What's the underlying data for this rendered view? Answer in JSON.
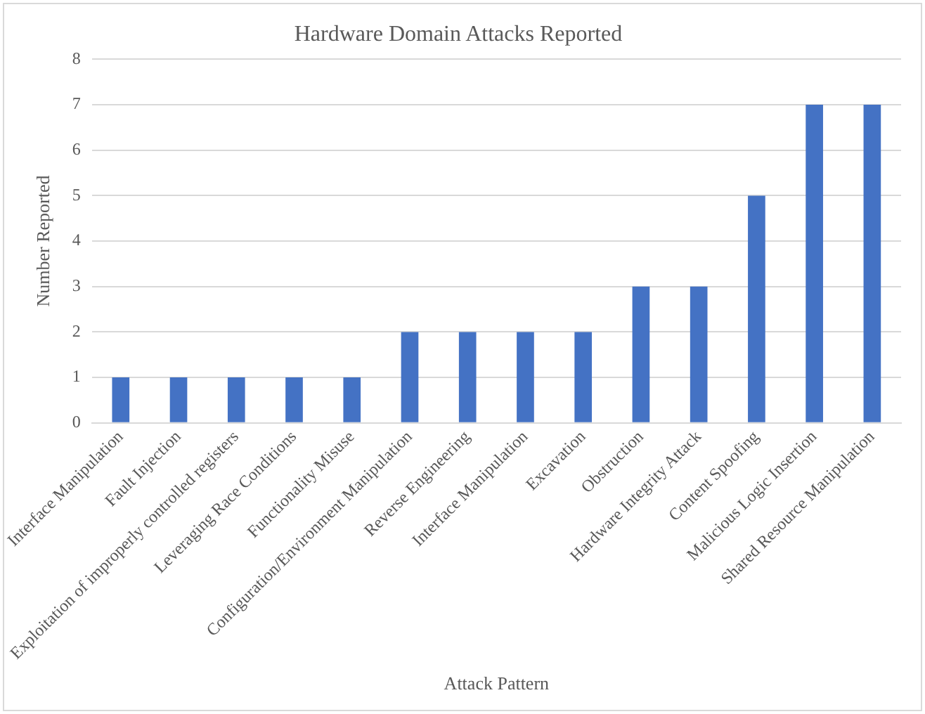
{
  "chart_data": {
    "type": "bar",
    "title": "Hardware Domain Attacks Reported",
    "xlabel": "Attack Pattern",
    "ylabel": "Number Reported",
    "categories": [
      "Interface Manipulation",
      "Fault Injection",
      "Exploitation of improperly controlled registers",
      "Leveraging Race Conditions",
      "Functionality Misuse",
      "Configuration/Environment Manipulation",
      "Reverse Engineering",
      "Interface Manipulation",
      "Excavation",
      "Obstruction",
      "Hardware Integrity Attack",
      "Content Spoofing",
      "Malicious Logic Insertion",
      "Shared Resource Manipulation"
    ],
    "values": [
      1,
      1,
      1,
      1,
      1,
      2,
      2,
      2,
      2,
      3,
      3,
      5,
      7,
      7
    ],
    "color": "#4472c4",
    "ylim": [
      0,
      8
    ],
    "yticks": [
      0,
      1,
      2,
      3,
      4,
      5,
      6,
      7,
      8
    ],
    "grid": "y"
  }
}
